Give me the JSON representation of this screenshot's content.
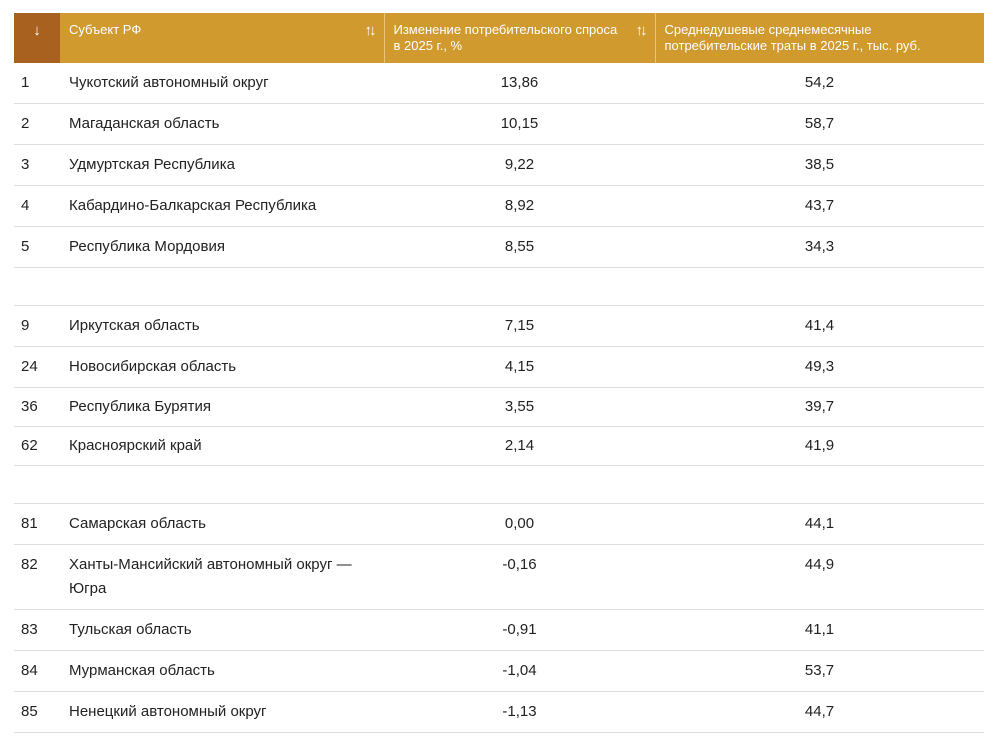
{
  "table": {
    "headers": {
      "rank_icon": "↓",
      "subject": "Субъект РФ",
      "demand_change": "Изменение потребительского спроса в 2025 г., %",
      "spending": "Среднедушевые среднемесячные потребительские траты в 2025 г., тыс. руб.",
      "sort_icon": "↑↓"
    },
    "rows": [
      {
        "rank": "1",
        "name": "Чукотский автономный округ",
        "change": "13,86",
        "spend": "54,2"
      },
      {
        "rank": "2",
        "name": "Магаданская область",
        "change": "10,15",
        "spend": "58,7"
      },
      {
        "rank": "3",
        "name": "Удмуртская Республика",
        "change": "9,22",
        "spend": "38,5"
      },
      {
        "rank": "4",
        "name": "Кабардино-Балкарская Республика",
        "change": "8,92",
        "spend": "43,7"
      },
      {
        "rank": "5",
        "name": "Республика Мордовия",
        "change": "8,55",
        "spend": "34,3"
      },
      {
        "rank": "9",
        "name": "Иркутская область",
        "change": "7,15",
        "spend": "41,4"
      },
      {
        "rank": "24",
        "name": "Новосибирская область",
        "change": "4,15",
        "spend": "49,3"
      },
      {
        "rank": "36",
        "name": "Республика Бурятия",
        "change": "3,55",
        "spend": "39,7"
      },
      {
        "rank": "62",
        "name": "Красноярский край",
        "change": "2,14",
        "spend": "41,9"
      },
      {
        "rank": "81",
        "name": "Самарская область",
        "change": "0,00",
        "spend": "44,1"
      },
      {
        "rank": "82",
        "name": "Ханты-Мансийский автономный округ — Югра",
        "change": "-0,16",
        "spend": "44,9"
      },
      {
        "rank": "83",
        "name": "Тульская область",
        "change": "-0,91",
        "spend": "41,1"
      },
      {
        "rank": "84",
        "name": "Мурманская область",
        "change": "-1,04",
        "spend": "53,7"
      },
      {
        "rank": "85",
        "name": "Ненецкий автономный округ",
        "change": "-1,13",
        "spend": "44,7"
      }
    ]
  }
}
